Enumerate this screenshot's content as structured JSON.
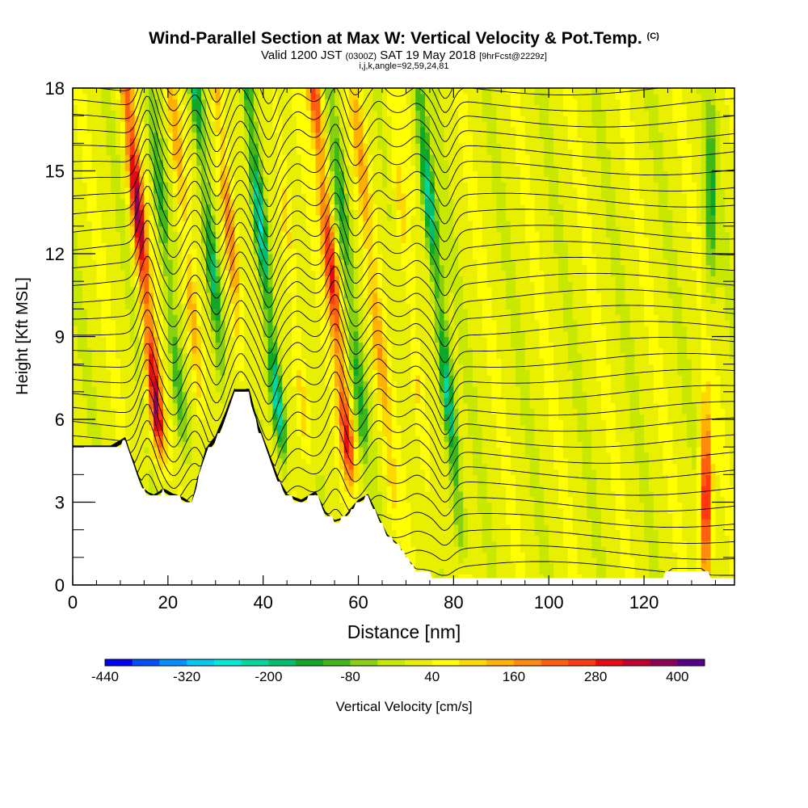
{
  "header": {
    "title_main": "Wind-Parallel Section at Max W: Vertical Velocity & Pot.Temp.",
    "title_copyright": "(C)",
    "valid_prefix": "Valid 1200 JST",
    "valid_utc": "(0300Z)",
    "valid_date": "SAT 19 May 2018",
    "forecast_info": "[9hrFcst@2229z]",
    "grid_info": "i,j,k,angle=92,59,24,81"
  },
  "chart_data": {
    "type": "heatmap",
    "xlabel": "Distance [nm]",
    "ylabel": "Height [Kft MSL]",
    "xlim": [
      0,
      139
    ],
    "ylim": [
      0,
      18
    ],
    "x_ticks": [
      "0",
      "20",
      "40",
      "60",
      "80",
      "100",
      "120"
    ],
    "x_tick_values": [
      0,
      20,
      40,
      60,
      80,
      100,
      120
    ],
    "y_ticks": [
      "0",
      "3",
      "6",
      "9",
      "12",
      "15",
      "18"
    ],
    "y_tick_values": [
      0,
      3,
      6,
      9,
      12,
      15,
      18
    ],
    "colorbar": {
      "label": "Vertical Velocity [cm/s]",
      "tick_labels": [
        "-440",
        "-320",
        "-200",
        "-80",
        "40",
        "160",
        "280",
        "400"
      ],
      "colors": [
        "#0000f5",
        "#0050ff",
        "#0090ff",
        "#00c8f0",
        "#00e8d8",
        "#00d8a0",
        "#00c070",
        "#10a828",
        "#40b818",
        "#88d010",
        "#c8e800",
        "#e8f000",
        "#ffff00",
        "#ffd800",
        "#ffb000",
        "#ff8a10",
        "#ff6010",
        "#ff3a10",
        "#e80a10",
        "#c00030",
        "#900058",
        "#58008a"
      ]
    },
    "terrain_kft": [
      [
        0,
        4.9
      ],
      [
        8,
        4.9
      ],
      [
        11,
        5.2
      ],
      [
        12,
        4.7
      ],
      [
        14,
        3.8
      ],
      [
        15,
        3.4
      ],
      [
        17,
        3.2
      ],
      [
        19,
        3.4
      ],
      [
        21,
        3.2
      ],
      [
        23,
        3.1
      ],
      [
        25,
        2.9
      ],
      [
        26,
        3.6
      ],
      [
        28,
        4.8
      ],
      [
        30,
        5.2
      ],
      [
        32,
        6.0
      ],
      [
        34,
        6.9
      ],
      [
        37,
        6.9
      ],
      [
        39,
        5.6
      ],
      [
        41,
        4.7
      ],
      [
        43,
        3.8
      ],
      [
        45,
        3.2
      ],
      [
        48,
        3.0
      ],
      [
        51,
        3.3
      ],
      [
        53,
        2.6
      ],
      [
        55,
        2.3
      ],
      [
        57,
        2.4
      ],
      [
        60,
        3.0
      ],
      [
        62,
        3.2
      ],
      [
        64,
        2.5
      ],
      [
        66,
        1.8
      ],
      [
        68,
        1.5
      ],
      [
        70,
        1.0
      ],
      [
        72,
        0.6
      ],
      [
        74,
        0.4
      ],
      [
        76,
        0.35
      ],
      [
        80,
        0.35
      ],
      [
        90,
        0.35
      ],
      [
        100,
        0.35
      ],
      [
        110,
        0.35
      ],
      [
        124,
        0.35
      ],
      [
        126,
        0.6
      ],
      [
        132,
        0.6
      ],
      [
        134,
        0.35
      ],
      [
        139,
        0.35
      ]
    ],
    "velocity_cm_s": {
      "background": 20,
      "cells": [
        {
          "x_nm": 14.5,
          "z_kft": 12,
          "cm_s": 360,
          "note": "updraft"
        },
        {
          "x_nm": 20,
          "z_kft": 11,
          "cm_s": -150,
          "note": "downdraft"
        },
        {
          "x_nm": 24.5,
          "z_kft": 11,
          "cm_s": 150,
          "note": "updraft"
        },
        {
          "x_nm": 29,
          "z_kft": 12,
          "cm_s": -230,
          "note": "downdraft"
        },
        {
          "x_nm": 34,
          "z_kft": 11,
          "cm_s": 200,
          "note": "updraft"
        },
        {
          "x_nm": 40,
          "z_kft": 12,
          "cm_s": -290,
          "note": "downdraft"
        },
        {
          "x_nm": 46,
          "z_kft": 11,
          "cm_s": 100,
          "note": "updraft"
        },
        {
          "x_nm": 54,
          "z_kft": 12,
          "cm_s": 280,
          "note": "updraft"
        },
        {
          "x_nm": 58,
          "z_kft": 11,
          "cm_s": -130,
          "note": "downdraft"
        },
        {
          "x_nm": 63,
          "z_kft": 11,
          "cm_s": 120,
          "note": "updraft"
        },
        {
          "x_nm": 71,
          "z_kft": 10,
          "cm_s": 90,
          "note": "updraft"
        },
        {
          "x_nm": 77,
          "z_kft": 10,
          "cm_s": -250,
          "note": "downdraft"
        },
        {
          "x_nm": 133,
          "z_kft": 3,
          "cm_s": 300,
          "note": "updraft"
        },
        {
          "x_nm": 134,
          "z_kft": 14,
          "cm_s": -150,
          "note": "downdraft"
        }
      ]
    }
  }
}
